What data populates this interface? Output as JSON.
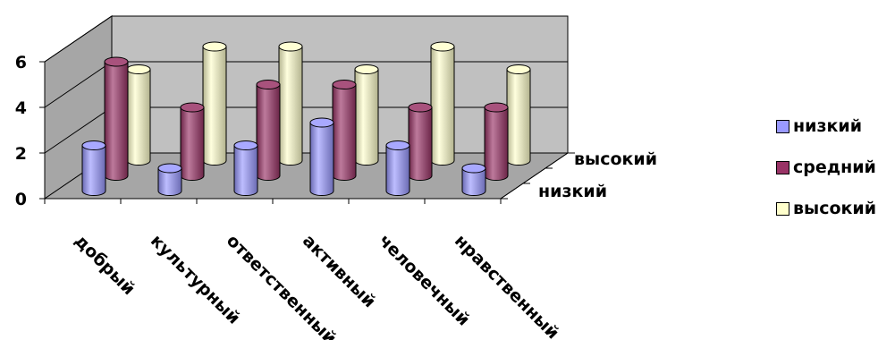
{
  "chart_data": {
    "type": "bar",
    "style": "3d-cylinder",
    "categories": [
      "добрый",
      "культурный",
      "ответственный",
      "активный",
      "человечный",
      "нравственный"
    ],
    "series": [
      {
        "name": "низкий",
        "color": "#9999FF",
        "values": [
          2,
          1,
          2,
          3,
          2,
          1
        ]
      },
      {
        "name": "средний",
        "color": "#993366",
        "values": [
          5,
          3,
          4,
          4,
          3,
          3
        ]
      },
      {
        "name": "высокий",
        "color": "#FFFFCC",
        "values": [
          4,
          5,
          5,
          4,
          5,
          4
        ]
      }
    ],
    "depth_labels": [
      "низкий",
      "высокий"
    ],
    "yticks": [
      0,
      2,
      4,
      6
    ],
    "ylim": [
      0,
      6
    ],
    "grid": true,
    "legend": "right"
  }
}
